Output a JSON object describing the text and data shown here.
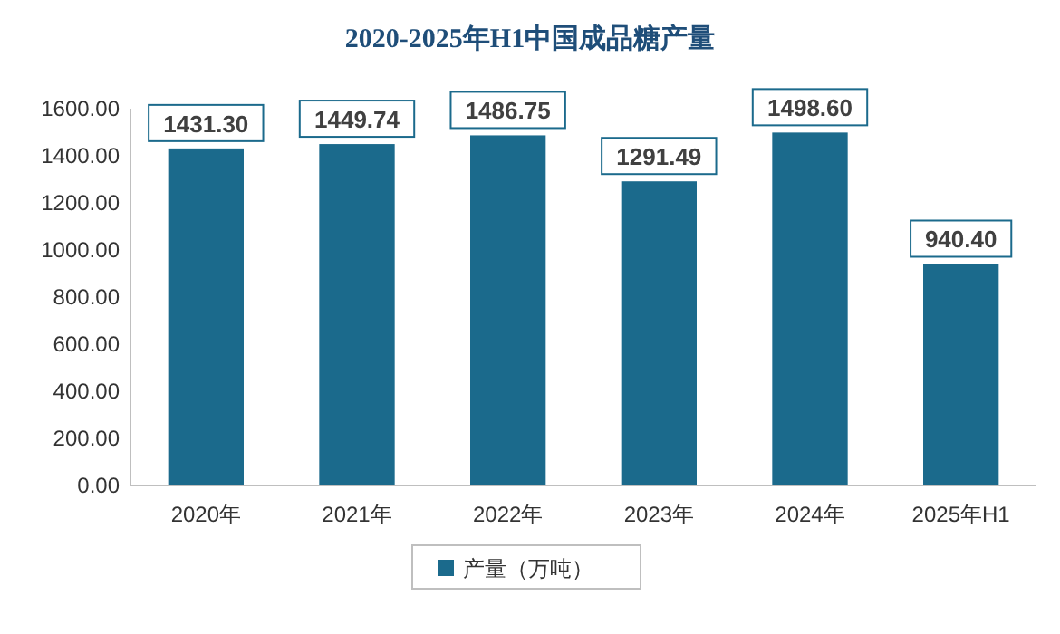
{
  "chart_data": {
    "type": "bar",
    "title": "2020-2025年H1中国成品糖产量",
    "categories": [
      "2020年",
      "2021年",
      "2022年",
      "2023年",
      "2024年",
      "2025年H1"
    ],
    "series": [
      {
        "name": "产量（万吨）",
        "color": "#1b6a8c",
        "values": [
          1431.3,
          1449.74,
          1486.75,
          1291.49,
          1498.6,
          940.4
        ],
        "value_labels": [
          "1431.30",
          "1449.74",
          "1486.75",
          "1291.49",
          "1498.60",
          "940.40"
        ]
      }
    ],
    "ylim": [
      0,
      1600
    ],
    "yticks": [
      {
        "value": 0,
        "label": "0.00"
      },
      {
        "value": 200,
        "label": "200.00"
      },
      {
        "value": 400,
        "label": "400.00"
      },
      {
        "value": 600,
        "label": "600.00"
      },
      {
        "value": 800,
        "label": "800.00"
      },
      {
        "value": 1000,
        "label": "1000.00"
      },
      {
        "value": 1200,
        "label": "1200.00"
      },
      {
        "value": 1400,
        "label": "1400.00"
      },
      {
        "value": 1600,
        "label": "1600.00"
      }
    ],
    "legend": "bottom",
    "grid": false
  }
}
